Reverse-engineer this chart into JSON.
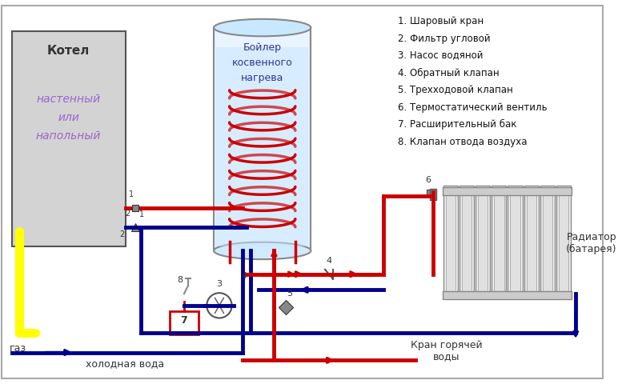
{
  "bg_color": "#ffffff",
  "border_color": "#cccccc",
  "red": "#cc0000",
  "blue": "#00008b",
  "dark_blue": "#00008b",
  "yellow": "#ffff00",
  "gray": "#888888",
  "light_gray": "#d3d3d3",
  "light_blue_fill": "#add8e6",
  "coil_color": "#cc0000",
  "legend": [
    "1. Шаровый кран",
    "2. Фильтр угловой",
    "3. Насос водяной",
    "4. Обратный клапан",
    "5. Трехходовой клапан",
    "6. Термостатический вентиль",
    "7. Расширительный бак",
    "8. Клапан отвода воздуха"
  ],
  "boiler_label": "Бойлер\nкосвенного\nнагрева",
  "kotsel_label": "Котел",
  "kotsel_sub": "настенный\nили\nнапольный",
  "gaz_label": "газ",
  "cold_water_label": "холодная вода",
  "hot_water_label": "Кран горячей\nводы",
  "radiator_label": "Радиатор\n(батарея)"
}
